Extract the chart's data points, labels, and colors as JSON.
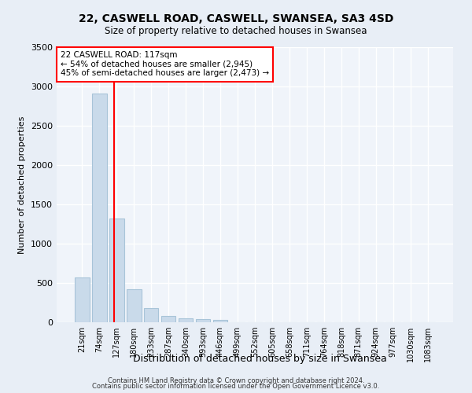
{
  "title1": "22, CASWELL ROAD, CASWELL, SWANSEA, SA3 4SD",
  "title2": "Size of property relative to detached houses in Swansea",
  "xlabel": "Distribution of detached houses by size in Swansea",
  "ylabel": "Number of detached properties",
  "categories": [
    "21sqm",
    "74sqm",
    "127sqm",
    "180sqm",
    "233sqm",
    "287sqm",
    "340sqm",
    "393sqm",
    "446sqm",
    "499sqm",
    "552sqm",
    "605sqm",
    "658sqm",
    "711sqm",
    "764sqm",
    "818sqm",
    "871sqm",
    "924sqm",
    "977sqm",
    "1030sqm",
    "1083sqm"
  ],
  "values": [
    570,
    2910,
    1320,
    420,
    185,
    80,
    50,
    40,
    35,
    0,
    0,
    0,
    0,
    0,
    0,
    0,
    0,
    0,
    0,
    0,
    0
  ],
  "bar_color": "#c9daea",
  "bar_edge_color": "#a8c4d8",
  "red_line_x": 1.87,
  "annotation_title": "22 CASWELL ROAD: 117sqm",
  "annotation_line1": "← 54% of detached houses are smaller (2,945)",
  "annotation_line2": "45% of semi-detached houses are larger (2,473) →",
  "ylim": [
    0,
    3500
  ],
  "yticks": [
    0,
    500,
    1000,
    1500,
    2000,
    2500,
    3000,
    3500
  ],
  "bg_color": "#e8eef6",
  "plot_bg_color": "#f0f4fa",
  "grid_color": "#ffffff",
  "footer_line1": "Contains HM Land Registry data © Crown copyright and database right 2024.",
  "footer_line2": "Contains public sector information licensed under the Open Government Licence v3.0."
}
